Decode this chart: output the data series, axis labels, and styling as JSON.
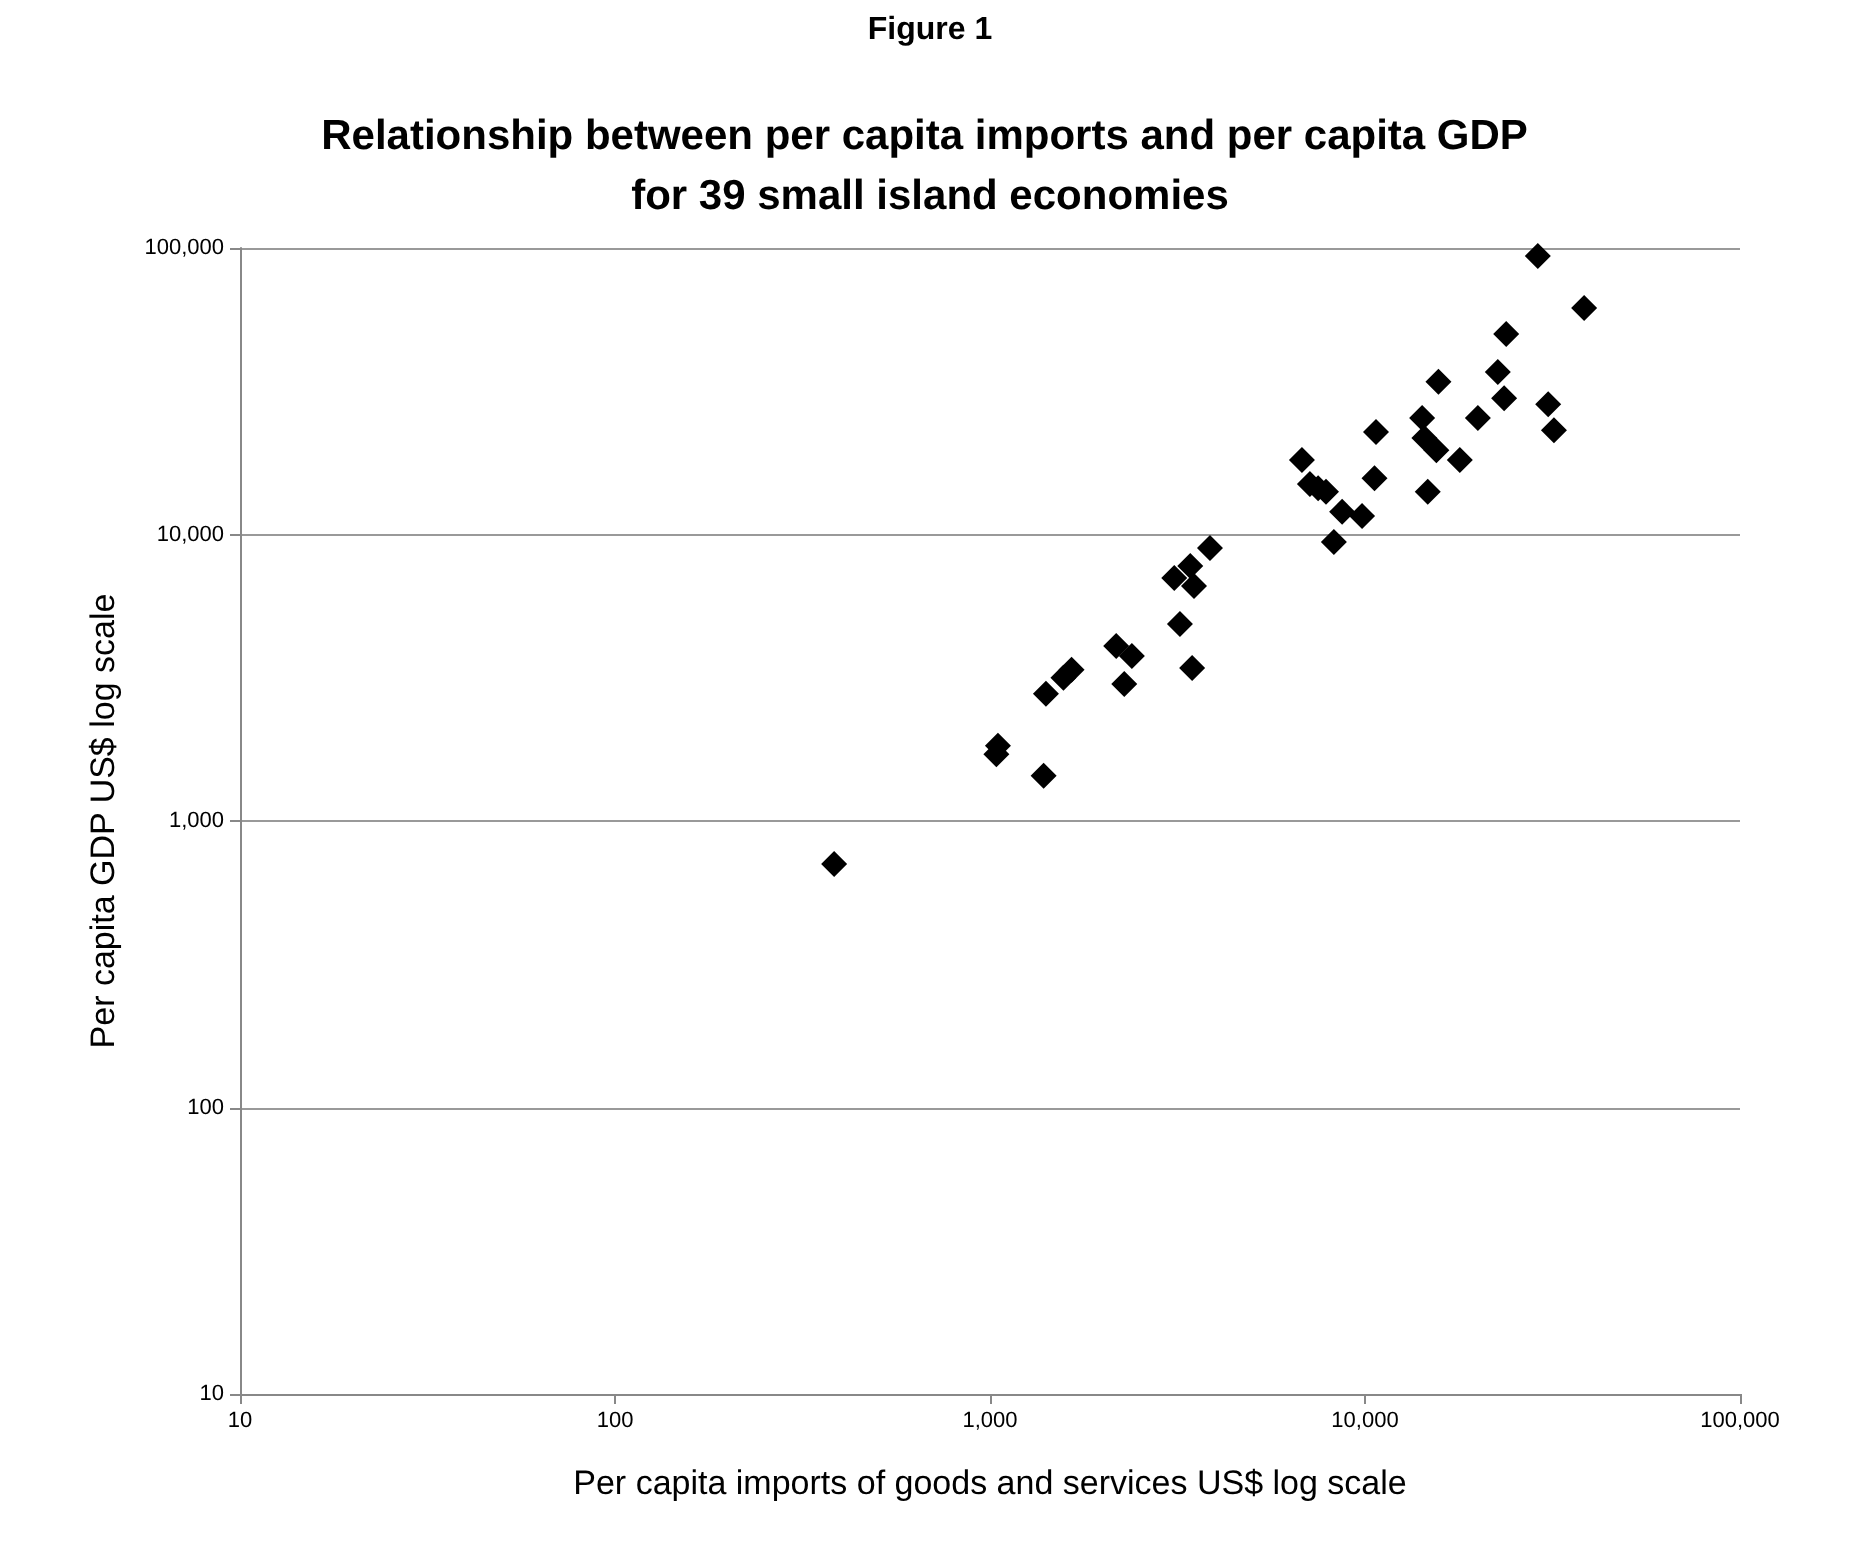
{
  "chart_data": {
    "type": "scatter",
    "title": "Relationship between per capita imports and per capita GDP for 39 small island economies",
    "annotations": [
      "Figure 1"
    ],
    "xlabel": "Per capita imports of goods and services US$ log scale",
    "ylabel": "Per capita GDP US$ log scale",
    "log": "xy",
    "grid": "y",
    "marker": "diamond",
    "xlim": [
      10,
      100000
    ],
    "ylim": [
      10,
      100000
    ],
    "xticks": [
      10,
      100,
      {
        "value": 1000,
        "label": "1,000"
      },
      {
        "value": 10000,
        "label": "10,000"
      },
      {
        "value": 100000,
        "label": "100,000"
      }
    ],
    "yticks": [
      10,
      100,
      {
        "value": 1000,
        "label": "1,000"
      },
      {
        "value": 10000,
        "label": "10,000"
      },
      {
        "value": 100000,
        "label": "100,000"
      }
    ],
    "series": [
      {
        "color": "#000000",
        "x": [
          3860,
          3420,
          3100,
          3500,
          3210,
          2170,
          2390,
          2280,
          3460,
          1650,
          1570,
          1410,
          1050,
          1040,
          1390,
          28900,
          38400,
          23800,
          15700,
          22600,
          23500,
          30800,
          31900,
          20000,
          14200,
          10700,
          14400,
          15500,
          17900,
          6790,
          7130,
          7870,
          7500,
          10600,
          14700,
          8690,
          9820,
          8260,
          384
        ],
        "values": [
          8970,
          7760,
          7050,
          6610,
          4870,
          4080,
          3770,
          3010,
          3420,
          3370,
          3160,
          2780,
          1830,
          1710,
          1440,
          93800,
          61800,
          50100,
          34100,
          36900,
          29900,
          28500,
          23100,
          25500,
          25500,
          22800,
          21700,
          19700,
          18200,
          18200,
          15000,
          14100,
          14500,
          15700,
          14100,
          12000,
          11600,
          9420,
          708
        ]
      }
    ]
  }
}
